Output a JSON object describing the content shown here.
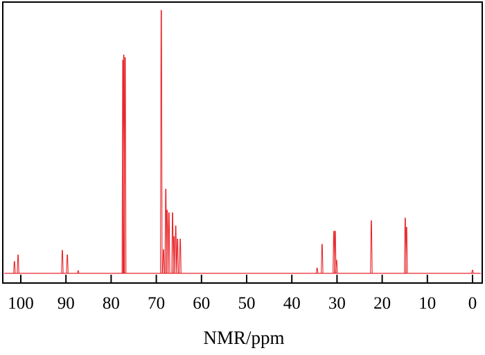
{
  "chart_data": {
    "type": "line",
    "title": "",
    "xlabel": "NMR/ppm",
    "ylabel": "",
    "xlim": [
      103.5,
      -2.3
    ],
    "x_reversed": true,
    "xticks": [
      100,
      90,
      80,
      70,
      60,
      50,
      40,
      30,
      20,
      10,
      0
    ],
    "grid": false,
    "legend": "none",
    "line_color": "#e8262a",
    "series": [
      {
        "peaks_ppm": [
          101.4,
          100.6,
          90.8,
          89.7,
          87.3,
          77.4,
          77.2,
          76.9,
          68.9,
          68.4,
          67.9,
          67.6,
          67.2,
          66.4,
          66.1,
          65.7,
          65.3,
          64.7,
          34.4,
          33.3,
          30.7,
          30.4,
          30.1,
          22.4,
          14.9,
          14.6,
          0.0
        ],
        "relative_intensity": [
          4.5,
          7,
          8.7,
          7,
          1,
          81,
          83,
          82,
          100,
          9,
          32,
          24,
          23,
          23,
          14,
          18,
          13,
          13,
          2,
          11,
          16,
          16,
          5,
          20,
          21,
          17.5,
          1.2
        ]
      }
    ]
  }
}
